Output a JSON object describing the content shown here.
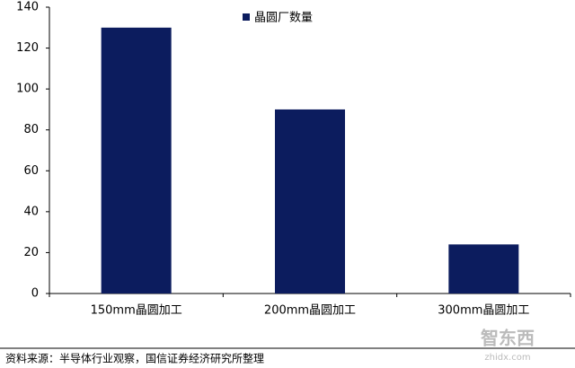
{
  "chart_data": {
    "type": "bar",
    "legend_label": "晶圆厂数量",
    "categories": [
      "150mm晶圆加工",
      "200mm晶圆加工",
      "300mm晶圆加工"
    ],
    "values": [
      130,
      90,
      24
    ],
    "color": "#0c1c5e",
    "ylim": [
      0,
      140
    ],
    "yticks": [
      0,
      20,
      40,
      60,
      80,
      100,
      120,
      140
    ],
    "grid": false,
    "source": "资料来源：半导体行业观察，国信证券经济研究所整理",
    "watermark": "智东西",
    "watermark_url": "zhidx.com"
  }
}
